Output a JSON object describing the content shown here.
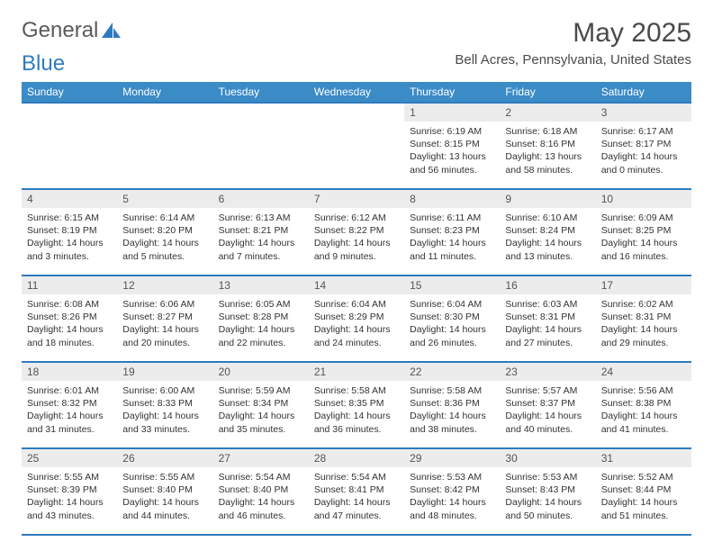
{
  "brand": {
    "part1": "General",
    "part2": "Blue"
  },
  "title": "May 2025",
  "location": "Bell Acres, Pennsylvania, United States",
  "colors": {
    "header_bg": "#3b8bc7",
    "header_border": "#2f7bbf",
    "daynum_bg": "#ececec",
    "text": "#333333",
    "title_text": "#4a4a4a"
  },
  "day_labels": [
    "Sunday",
    "Monday",
    "Tuesday",
    "Wednesday",
    "Thursday",
    "Friday",
    "Saturday"
  ],
  "weeks": [
    [
      null,
      null,
      null,
      null,
      {
        "n": "1",
        "sr": "6:19 AM",
        "ss": "8:15 PM",
        "dl": "13 hours and 56 minutes."
      },
      {
        "n": "2",
        "sr": "6:18 AM",
        "ss": "8:16 PM",
        "dl": "13 hours and 58 minutes."
      },
      {
        "n": "3",
        "sr": "6:17 AM",
        "ss": "8:17 PM",
        "dl": "14 hours and 0 minutes."
      }
    ],
    [
      {
        "n": "4",
        "sr": "6:15 AM",
        "ss": "8:19 PM",
        "dl": "14 hours and 3 minutes."
      },
      {
        "n": "5",
        "sr": "6:14 AM",
        "ss": "8:20 PM",
        "dl": "14 hours and 5 minutes."
      },
      {
        "n": "6",
        "sr": "6:13 AM",
        "ss": "8:21 PM",
        "dl": "14 hours and 7 minutes."
      },
      {
        "n": "7",
        "sr": "6:12 AM",
        "ss": "8:22 PM",
        "dl": "14 hours and 9 minutes."
      },
      {
        "n": "8",
        "sr": "6:11 AM",
        "ss": "8:23 PM",
        "dl": "14 hours and 11 minutes."
      },
      {
        "n": "9",
        "sr": "6:10 AM",
        "ss": "8:24 PM",
        "dl": "14 hours and 13 minutes."
      },
      {
        "n": "10",
        "sr": "6:09 AM",
        "ss": "8:25 PM",
        "dl": "14 hours and 16 minutes."
      }
    ],
    [
      {
        "n": "11",
        "sr": "6:08 AM",
        "ss": "8:26 PM",
        "dl": "14 hours and 18 minutes."
      },
      {
        "n": "12",
        "sr": "6:06 AM",
        "ss": "8:27 PM",
        "dl": "14 hours and 20 minutes."
      },
      {
        "n": "13",
        "sr": "6:05 AM",
        "ss": "8:28 PM",
        "dl": "14 hours and 22 minutes."
      },
      {
        "n": "14",
        "sr": "6:04 AM",
        "ss": "8:29 PM",
        "dl": "14 hours and 24 minutes."
      },
      {
        "n": "15",
        "sr": "6:04 AM",
        "ss": "8:30 PM",
        "dl": "14 hours and 26 minutes."
      },
      {
        "n": "16",
        "sr": "6:03 AM",
        "ss": "8:31 PM",
        "dl": "14 hours and 27 minutes."
      },
      {
        "n": "17",
        "sr": "6:02 AM",
        "ss": "8:31 PM",
        "dl": "14 hours and 29 minutes."
      }
    ],
    [
      {
        "n": "18",
        "sr": "6:01 AM",
        "ss": "8:32 PM",
        "dl": "14 hours and 31 minutes."
      },
      {
        "n": "19",
        "sr": "6:00 AM",
        "ss": "8:33 PM",
        "dl": "14 hours and 33 minutes."
      },
      {
        "n": "20",
        "sr": "5:59 AM",
        "ss": "8:34 PM",
        "dl": "14 hours and 35 minutes."
      },
      {
        "n": "21",
        "sr": "5:58 AM",
        "ss": "8:35 PM",
        "dl": "14 hours and 36 minutes."
      },
      {
        "n": "22",
        "sr": "5:58 AM",
        "ss": "8:36 PM",
        "dl": "14 hours and 38 minutes."
      },
      {
        "n": "23",
        "sr": "5:57 AM",
        "ss": "8:37 PM",
        "dl": "14 hours and 40 minutes."
      },
      {
        "n": "24",
        "sr": "5:56 AM",
        "ss": "8:38 PM",
        "dl": "14 hours and 41 minutes."
      }
    ],
    [
      {
        "n": "25",
        "sr": "5:55 AM",
        "ss": "8:39 PM",
        "dl": "14 hours and 43 minutes."
      },
      {
        "n": "26",
        "sr": "5:55 AM",
        "ss": "8:40 PM",
        "dl": "14 hours and 44 minutes."
      },
      {
        "n": "27",
        "sr": "5:54 AM",
        "ss": "8:40 PM",
        "dl": "14 hours and 46 minutes."
      },
      {
        "n": "28",
        "sr": "5:54 AM",
        "ss": "8:41 PM",
        "dl": "14 hours and 47 minutes."
      },
      {
        "n": "29",
        "sr": "5:53 AM",
        "ss": "8:42 PM",
        "dl": "14 hours and 48 minutes."
      },
      {
        "n": "30",
        "sr": "5:53 AM",
        "ss": "8:43 PM",
        "dl": "14 hours and 50 minutes."
      },
      {
        "n": "31",
        "sr": "5:52 AM",
        "ss": "8:44 PM",
        "dl": "14 hours and 51 minutes."
      }
    ]
  ],
  "labels": {
    "sunrise": "Sunrise: ",
    "sunset": "Sunset: ",
    "daylight": "Daylight: "
  }
}
